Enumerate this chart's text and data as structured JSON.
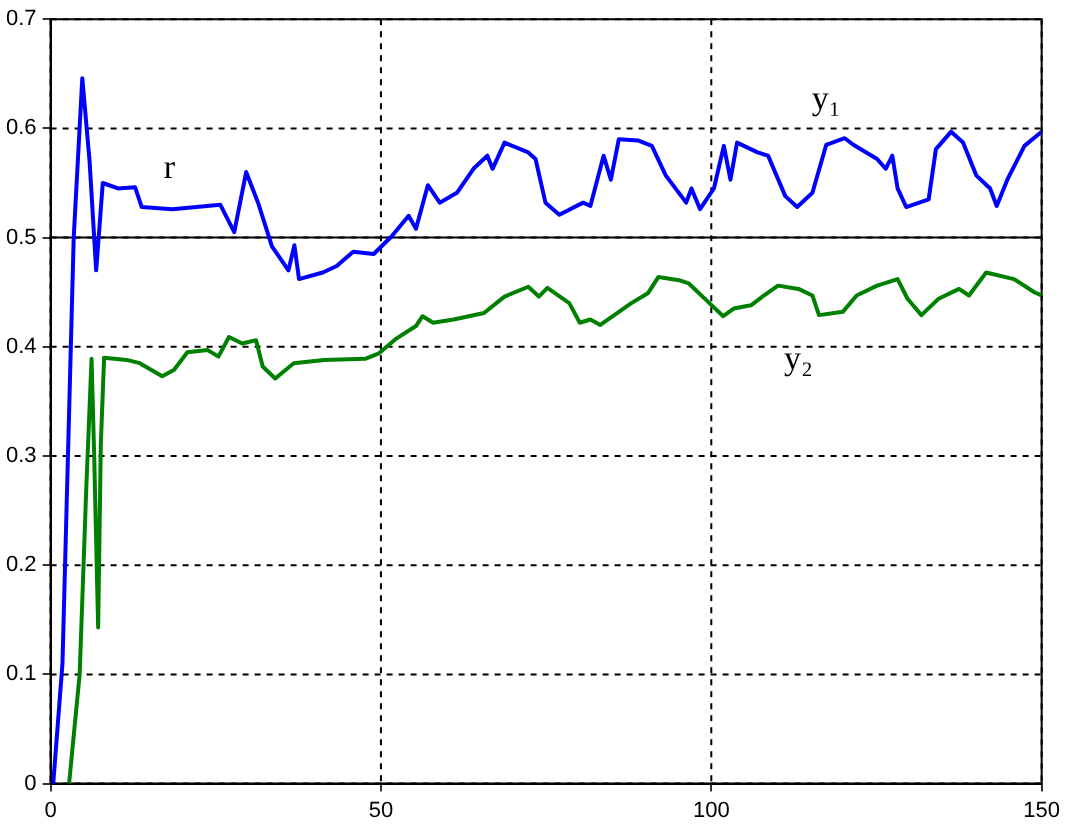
{
  "chart_data": {
    "type": "line",
    "xlim": [
      0,
      150
    ],
    "ylim": [
      0,
      0.7
    ],
    "xticks": [
      0,
      50,
      100,
      150
    ],
    "yticks": [
      0,
      0.1,
      0.2,
      0.3,
      0.4,
      0.5,
      0.6,
      0.7
    ],
    "grid": true,
    "legend": false,
    "marker": "none",
    "line_style": "solid",
    "ref_lines": [
      {
        "axis": "y",
        "value": 0.5,
        "label": "r",
        "color": "#000000",
        "line_style": "solid"
      }
    ],
    "series": [
      {
        "name": "y₁",
        "color": "#0000ff",
        "x": [
          0.4,
          1.8,
          3.5,
          4.8,
          5.9,
          6.9,
          7.9,
          10.2,
          12.8,
          13.8,
          18.4,
          25.7,
          27.8,
          29.6,
          31.4,
          33.5,
          36,
          36.9,
          37.6,
          41.2,
          43.3,
          45.8,
          48.9,
          51.6,
          54.2,
          55.3,
          57.1,
          58.9,
          61.5,
          64,
          66.1,
          66.9,
          68.7,
          72.3,
          73.4,
          74.9,
          77,
          80.6,
          81.7,
          83.7,
          84.8,
          86,
          88.9,
          91,
          93.1,
          96.2,
          97,
          98.3,
          100.4,
          101.9,
          102.9,
          103.9,
          107,
          108.6,
          111.2,
          113,
          115.3,
          117.4,
          120.2,
          121.5,
          125.1,
          126.4,
          127.4,
          128.2,
          129.5,
          132.9,
          134,
          136.3,
          138.1,
          140.1,
          142.2,
          143.2,
          144.8,
          147.4,
          150
        ],
        "values": [
          0,
          0.11,
          0.5,
          0.646,
          0.57,
          0.47,
          0.55,
          0.545,
          0.546,
          0.528,
          0.526,
          0.53,
          0.505,
          0.56,
          0.532,
          0.492,
          0.47,
          0.493,
          0.462,
          0.468,
          0.474,
          0.487,
          0.485,
          0.501,
          0.52,
          0.508,
          0.548,
          0.532,
          0.541,
          0.563,
          0.575,
          0.563,
          0.587,
          0.578,
          0.572,
          0.532,
          0.521,
          0.532,
          0.529,
          0.575,
          0.553,
          0.59,
          0.589,
          0.584,
          0.557,
          0.532,
          0.545,
          0.526,
          0.545,
          0.584,
          0.553,
          0.587,
          0.578,
          0.575,
          0.538,
          0.528,
          0.541,
          0.585,
          0.591,
          0.585,
          0.572,
          0.563,
          0.575,
          0.545,
          0.528,
          0.535,
          0.581,
          0.597,
          0.587,
          0.557,
          0.545,
          0.529,
          0.553,
          0.584,
          0.597
        ]
      },
      {
        "name": "y₂",
        "color": "#008000",
        "x": [
          2.8,
          4.4,
          5.4,
          6.2,
          6.6,
          7.2,
          7.6,
          8.1,
          11.5,
          13.5,
          16.9,
          18.7,
          20.7,
          23.8,
          25.4,
          27,
          29,
          31.1,
          32.1,
          34,
          36.8,
          41.4,
          47.6,
          49.7,
          52.2,
          55.3,
          56.3,
          57.9,
          61,
          65.6,
          68.7,
          72.3,
          73.9,
          75.2,
          78.5,
          80.1,
          81.7,
          83.2,
          85.8,
          87.9,
          90.4,
          92,
          95.1,
          96.6,
          99.2,
          101.8,
          103.4,
          106,
          108,
          110.1,
          113.2,
          115.3,
          116.3,
          119.9,
          122,
          125.1,
          128.2,
          129.7,
          131.8,
          134.4,
          137.5,
          139,
          141.6,
          145.8,
          148.9,
          150
        ],
        "values": [
          0,
          0.1,
          0.27,
          0.389,
          0.3,
          0.143,
          0.31,
          0.39,
          0.388,
          0.385,
          0.373,
          0.379,
          0.395,
          0.397,
          0.391,
          0.409,
          0.403,
          0.406,
          0.382,
          0.371,
          0.385,
          0.388,
          0.389,
          0.394,
          0.407,
          0.419,
          0.428,
          0.422,
          0.425,
          0.431,
          0.446,
          0.455,
          0.446,
          0.454,
          0.44,
          0.422,
          0.425,
          0.42,
          0.431,
          0.44,
          0.449,
          0.464,
          0.461,
          0.458,
          0.443,
          0.428,
          0.435,
          0.438,
          0.447,
          0.456,
          0.453,
          0.447,
          0.429,
          0.432,
          0.447,
          0.456,
          0.462,
          0.444,
          0.429,
          0.444,
          0.453,
          0.447,
          0.468,
          0.462,
          0.45,
          0.447
        ]
      }
    ]
  }
}
